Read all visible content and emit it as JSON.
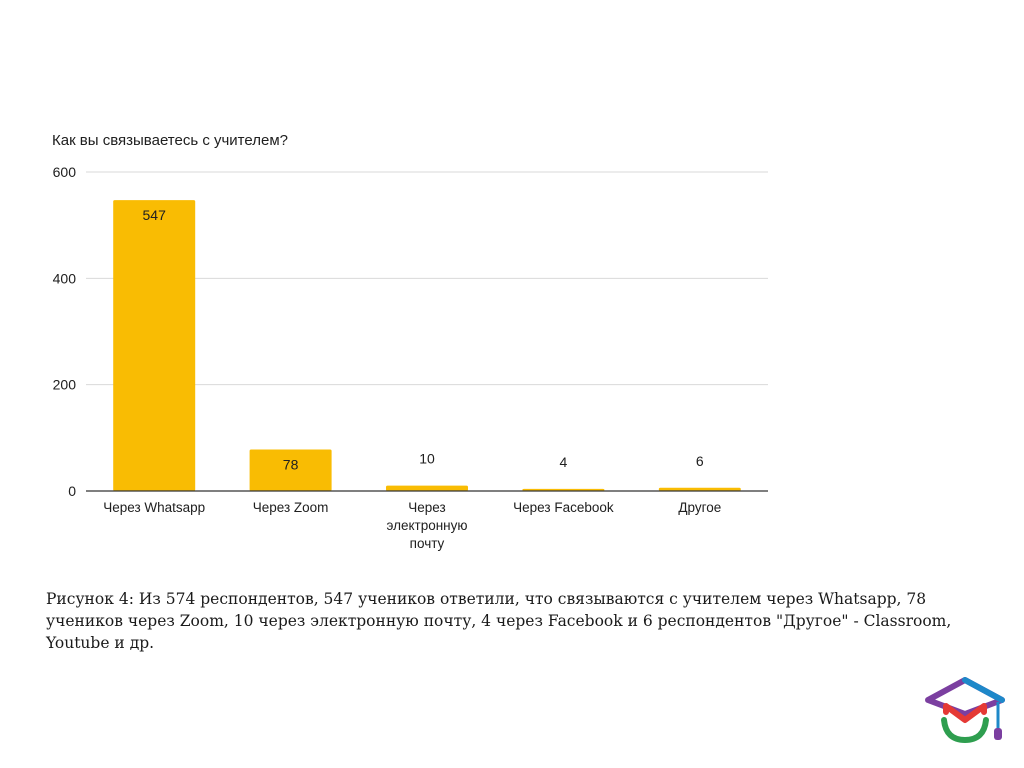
{
  "chart_data": {
    "type": "bar",
    "title": "Как вы связываетесь с учителем?",
    "categories": [
      [
        "Через Whatsapp"
      ],
      [
        "Через Zoom"
      ],
      [
        "Через",
        "электронную",
        "почту"
      ],
      [
        "Через Facebook"
      ],
      [
        "Другое"
      ]
    ],
    "values": [
      547,
      78,
      10,
      4,
      6
    ],
    "value_labels": [
      "547",
      "78",
      "10",
      "4",
      "6"
    ],
    "yticks": [
      "0",
      "200",
      "400",
      "600"
    ],
    "ylim": [
      0,
      600
    ],
    "grid": true,
    "legend": "none",
    "bar_color": "#F9BC03",
    "grid_color": "#d9d9d9",
    "axis_color": "#333333"
  },
  "caption": "Рисунок 4: Из 574 респондентов, 547 учеников ответили, что связываются с учителем через Whatsapp, 78 учеников через Zoom, 10 через электронную почту, 4 через Facebook и 6 респондентов \"Другое\" - Classroom, Youtube и др.",
  "logo": {
    "icon": "graduation-cap-logo-icon",
    "colors": [
      "#7b3fa0",
      "#1e88c9",
      "#e53935",
      "#2e9e4f"
    ]
  }
}
